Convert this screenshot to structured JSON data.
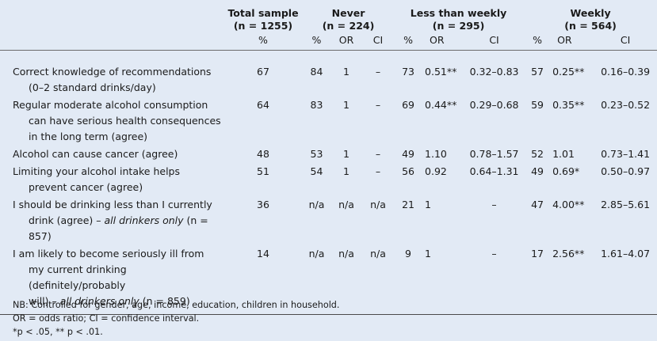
{
  "header": {
    "total": {
      "title": "Total sample",
      "n": "(n = 1255)"
    },
    "never": {
      "title": "Never",
      "n": "(n = 224)"
    },
    "less_weekly": {
      "title": "Less than weekly",
      "n": "(n = 295)"
    },
    "weekly": {
      "title": "Weekly",
      "n": "(n = 564)"
    },
    "units": [
      "%",
      "%",
      "OR",
      "CI",
      "%",
      "OR",
      "CI",
      "%",
      "OR",
      "CI"
    ]
  },
  "rows": [
    {
      "label": [
        "Correct knowledge of recommendations",
        "(0–2 standard drinks/day)"
      ],
      "cells": [
        "67",
        "84",
        "1",
        "–",
        "73",
        "0.51**",
        "0.32–0.83",
        "57",
        "0.25**",
        "0.16–0.39"
      ]
    },
    {
      "label": [
        "Regular moderate alcohol consumption",
        "can have serious health consequences",
        "in the long term (agree)"
      ],
      "cells": [
        "64",
        "83",
        "1",
        "–",
        "69",
        "0.44**",
        "0.29–0.68",
        "59",
        "0.35**",
        "0.23–0.52"
      ]
    },
    {
      "label": [
        "Alcohol can cause cancer (agree)"
      ],
      "cells": [
        "48",
        "53",
        "1",
        "–",
        "49",
        "1.10",
        "0.78–1.57",
        "52",
        "1.01",
        "0.73–1.41"
      ]
    },
    {
      "label": [
        "Limiting your alcohol intake helps",
        "prevent cancer (agree)"
      ],
      "cells": [
        "51",
        "54",
        "1",
        "–",
        "56",
        "0.92",
        "0.64–1.31",
        "49",
        "0.69*",
        "0.50–0.97"
      ]
    },
    {
      "label": [
        "I should be drinking less than I currently",
        "drink (agree) – "
      ],
      "label_em": "all drinkers only",
      "label_tail": " (n = 857)",
      "cells": [
        "36",
        "n/a",
        "n/a",
        "n/a",
        "21",
        "1",
        "–",
        "47",
        "4.00**",
        "2.85–5.61"
      ]
    },
    {
      "label": [
        "I am likely to become seriously ill from",
        "my current drinking (definitely/probably",
        "will) – "
      ],
      "label_em": "all drinkers only",
      "label_tail": " (n = 859)",
      "cells": [
        "14",
        "n/a",
        "n/a",
        "n/a",
        "9",
        "1",
        "–",
        "17",
        "2.56**",
        "1.61–4.07"
      ]
    }
  ],
  "notes": [
    "NB: Controlled for gender, age, income, education, children in household.",
    "OR = odds ratio; CI = confidence interval.",
    "*p < .05, ** p < .01."
  ]
}
